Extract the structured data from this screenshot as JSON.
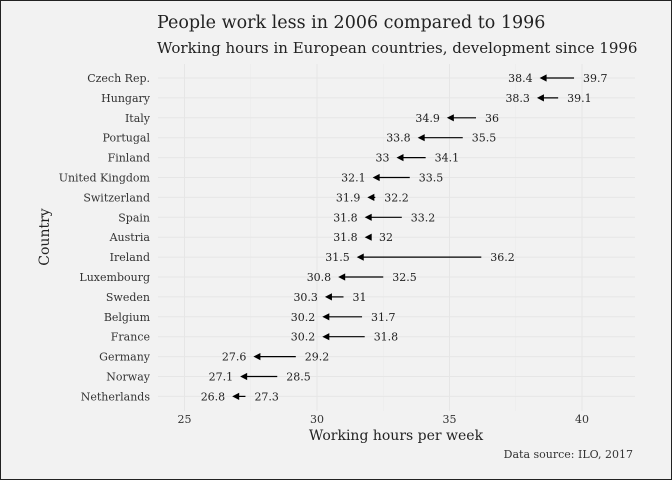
{
  "chart_data": {
    "type": "arrow-dot",
    "title": "People work less in 2006 compared to 1996",
    "subtitle": "Working hours in European countries, development since 1996",
    "xlabel": "Working hours per week",
    "ylabel": "Country",
    "caption": "Data source: ILO, 2017",
    "xlim": [
      24,
      42
    ],
    "x_ticks": [
      25,
      30,
      35,
      40
    ],
    "grid": true,
    "categories": [
      "Czech Rep.",
      "Hungary",
      "Italy",
      "Portugal",
      "Finland",
      "United Kingdom",
      "Switzerland",
      "Spain",
      "Austria",
      "Ireland",
      "Luxembourg",
      "Sweden",
      "Belgium",
      "France",
      "Germany",
      "Norway",
      "Netherlands"
    ],
    "series": [
      {
        "values": [
          39.7,
          39.1,
          36,
          35.5,
          34.1,
          33.5,
          32.2,
          33.2,
          32,
          36.2,
          32.5,
          31,
          31.7,
          31.8,
          29.2,
          28.5,
          27.3
        ]
      },
      {
        "values": [
          38.4,
          38.3,
          34.9,
          33.8,
          33,
          32.1,
          31.9,
          31.8,
          31.8,
          31.5,
          30.8,
          30.3,
          30.2,
          30.2,
          27.6,
          27.1,
          26.8
        ]
      }
    ]
  }
}
